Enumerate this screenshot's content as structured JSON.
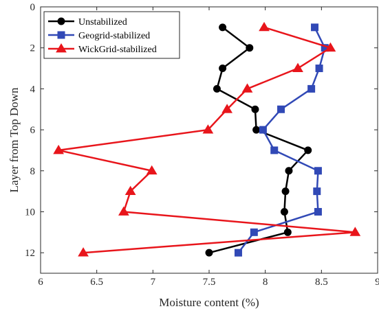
{
  "chart_data": {
    "type": "line",
    "xlabel": "Moisture content (%)",
    "ylabel": "Layer from Top Down",
    "xlim": [
      6,
      9
    ],
    "ylim": [
      0,
      13
    ],
    "y_reversed": true,
    "x_ticks": [
      6,
      6.5,
      7,
      7.5,
      8,
      8.5,
      9
    ],
    "x_tick_labels": [
      "6",
      "6.5",
      "7",
      "7.5",
      "8",
      "8.5",
      "9"
    ],
    "y_ticks": [
      0,
      2,
      4,
      6,
      8,
      10,
      12
    ],
    "y_tick_labels": [
      "0",
      "2",
      "4",
      "6",
      "8",
      "10",
      "12"
    ],
    "grid": false,
    "legend_position": "top-left",
    "series": [
      {
        "name": "Unstabilized",
        "color": "#000000",
        "marker": "circle",
        "points": [
          [
            7.62,
            1
          ],
          [
            7.86,
            2
          ],
          [
            7.62,
            3
          ],
          [
            7.57,
            4
          ],
          [
            7.91,
            5
          ],
          [
            7.92,
            6
          ],
          [
            8.38,
            7
          ],
          [
            8.21,
            8
          ],
          [
            8.18,
            9
          ],
          [
            8.17,
            10
          ],
          [
            8.2,
            11
          ],
          [
            7.5,
            12
          ]
        ]
      },
      {
        "name": "Geogrid-stabilized",
        "color": "#3149b6",
        "marker": "square",
        "points": [
          [
            8.44,
            1
          ],
          [
            8.53,
            2
          ],
          [
            8.48,
            3
          ],
          [
            8.41,
            4
          ],
          [
            8.14,
            5
          ],
          [
            7.98,
            6
          ],
          [
            8.08,
            7
          ],
          [
            8.47,
            8
          ],
          [
            8.46,
            9
          ],
          [
            8.47,
            10
          ],
          [
            7.9,
            11
          ],
          [
            7.76,
            12
          ]
        ]
      },
      {
        "name": "WickGrid-stabilized",
        "color": "#e8151b",
        "marker": "triangle",
        "points": [
          [
            7.99,
            1
          ],
          [
            8.58,
            2
          ],
          [
            8.29,
            3
          ],
          [
            7.84,
            4
          ],
          [
            7.66,
            5
          ],
          [
            7.49,
            6
          ],
          [
            6.16,
            7
          ],
          [
            6.99,
            8
          ],
          [
            6.8,
            9
          ],
          [
            6.74,
            10
          ],
          [
            8.8,
            11
          ],
          [
            6.38,
            12
          ]
        ]
      }
    ]
  }
}
